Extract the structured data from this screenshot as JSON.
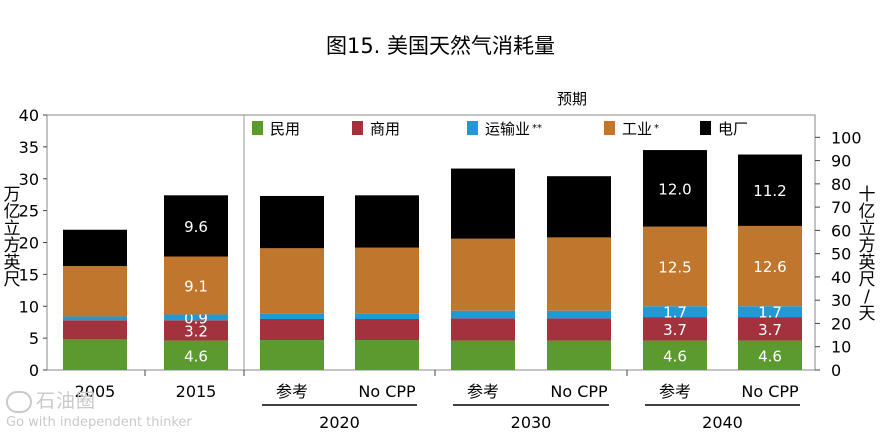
{
  "chart_data": {
    "type": "bar",
    "stacked": true,
    "title": "图15. 美国天然气消耗量",
    "forecast_label": "预期",
    "ylabel_left": "万亿立方英尺",
    "ylabel_right": "十亿立方英尺/天",
    "ylim_left": [
      0,
      40
    ],
    "yticks_left": [
      0,
      5,
      10,
      15,
      20,
      25,
      30,
      35,
      40
    ],
    "ylim_right": [
      0,
      110
    ],
    "yticks_right": [
      0,
      10,
      20,
      30,
      40,
      50,
      60,
      70,
      80,
      90,
      100
    ],
    "categories": [
      "2005",
      "2015",
      "参考",
      "No CPP",
      "参考",
      "No CPP",
      "参考",
      "No CPP"
    ],
    "groups": [
      {
        "label": "2020",
        "from": 2,
        "to": 3
      },
      {
        "label": "2030",
        "from": 4,
        "to": 5
      },
      {
        "label": "2040",
        "from": 6,
        "to": 7
      }
    ],
    "series": [
      {
        "name": "民用",
        "color": "#5b9a2e",
        "values": [
          4.8,
          4.6,
          4.7,
          4.7,
          4.6,
          4.6,
          4.6,
          4.6
        ],
        "labels": [
          "",
          "4.6",
          "",
          "",
          "",
          "",
          "4.6",
          "4.6"
        ]
      },
      {
        "name": "商用",
        "color": "#a3323c",
        "values": [
          3.0,
          3.2,
          3.3,
          3.3,
          3.5,
          3.5,
          3.7,
          3.7
        ],
        "labels": [
          "",
          "3.2",
          "",
          "",
          "",
          "",
          "3.7",
          "3.7"
        ]
      },
      {
        "name": "运输业",
        "mark": "**",
        "color": "#1f9ad6",
        "values": [
          0.6,
          0.9,
          0.9,
          0.9,
          1.2,
          1.2,
          1.7,
          1.7
        ],
        "labels": [
          "",
          "0.9",
          "",
          "",
          "",
          "",
          "1.7",
          "1.7"
        ]
      },
      {
        "name": "工业",
        "mark": "*",
        "color": "#c0762d",
        "values": [
          7.9,
          9.1,
          10.2,
          10.3,
          11.3,
          11.5,
          12.5,
          12.6
        ],
        "labels": [
          "",
          "9.1",
          "",
          "",
          "",
          "",
          "12.5",
          "12.6"
        ]
      },
      {
        "name": "电厂",
        "color": "#000000",
        "values": [
          5.7,
          9.6,
          8.2,
          8.2,
          11.0,
          9.6,
          12.0,
          11.2
        ],
        "labels": [
          "",
          "9.6",
          "",
          "",
          "",
          "",
          "12.0",
          "11.2"
        ]
      }
    ]
  },
  "watermark": {
    "name": "石油圈",
    "tagline": "Go with independent thinker"
  }
}
